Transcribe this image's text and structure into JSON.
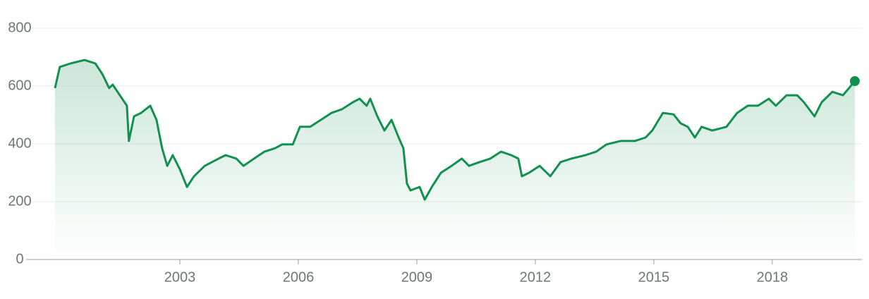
{
  "chart_data": {
    "type": "area_line",
    "color": "#12904f",
    "grid": true,
    "xlim": [
      1999.25,
      2020.27
    ],
    "xticks": [
      2003,
      2006,
      2009,
      2012,
      2015,
      2018
    ],
    "ylim": [
      0,
      800
    ],
    "yticks": [
      0,
      200,
      400,
      600,
      800
    ],
    "x": [
      1999.84,
      1999.96,
      2000.23,
      2000.59,
      2000.86,
      2001.04,
      2001.21,
      2001.3,
      2001.48,
      2001.66,
      2001.71,
      2001.84,
      2002.02,
      2002.25,
      2002.41,
      2002.55,
      2002.68,
      2002.82,
      2003.0,
      2003.18,
      2003.36,
      2003.63,
      2003.98,
      2004.16,
      2004.43,
      2004.61,
      2004.88,
      2005.14,
      2005.41,
      2005.59,
      2005.86,
      2006.04,
      2006.3,
      2006.57,
      2006.84,
      2007.11,
      2007.38,
      2007.55,
      2007.73,
      2007.82,
      2008.0,
      2008.18,
      2008.36,
      2008.54,
      2008.66,
      2008.75,
      2008.84,
      2009.07,
      2009.2,
      2009.38,
      2009.61,
      2009.88,
      2010.14,
      2010.32,
      2010.59,
      2010.86,
      2011.13,
      2011.39,
      2011.57,
      2011.66,
      2011.84,
      2012.11,
      2012.38,
      2012.64,
      2012.91,
      2013.27,
      2013.54,
      2013.8,
      2014.16,
      2014.52,
      2014.79,
      2014.96,
      2015.23,
      2015.5,
      2015.68,
      2015.86,
      2016.04,
      2016.21,
      2016.48,
      2016.84,
      2017.11,
      2017.38,
      2017.64,
      2017.91,
      2018.09,
      2018.36,
      2018.63,
      2018.8,
      2019.07,
      2019.25,
      2019.52,
      2019.79,
      2020.09
    ],
    "values": [
      593,
      666,
      678,
      690,
      678,
      641,
      593,
      605,
      568,
      532,
      410,
      495,
      507,
      532,
      483,
      385,
      324,
      361,
      312,
      251,
      288,
      324,
      349,
      361,
      349,
      324,
      349,
      373,
      385,
      398,
      398,
      459,
      459,
      483,
      507,
      520,
      544,
      556,
      532,
      556,
      495,
      446,
      483,
      422,
      385,
      263,
      239,
      251,
      207,
      251,
      300,
      324,
      349,
      324,
      337,
      349,
      373,
      361,
      349,
      288,
      300,
      324,
      288,
      337,
      349,
      361,
      373,
      398,
      410,
      410,
      422,
      446,
      507,
      502,
      471,
      459,
      422,
      459,
      446,
      459,
      507,
      532,
      532,
      556,
      532,
      568,
      568,
      544,
      495,
      544,
      580,
      568,
      617
    ]
  }
}
